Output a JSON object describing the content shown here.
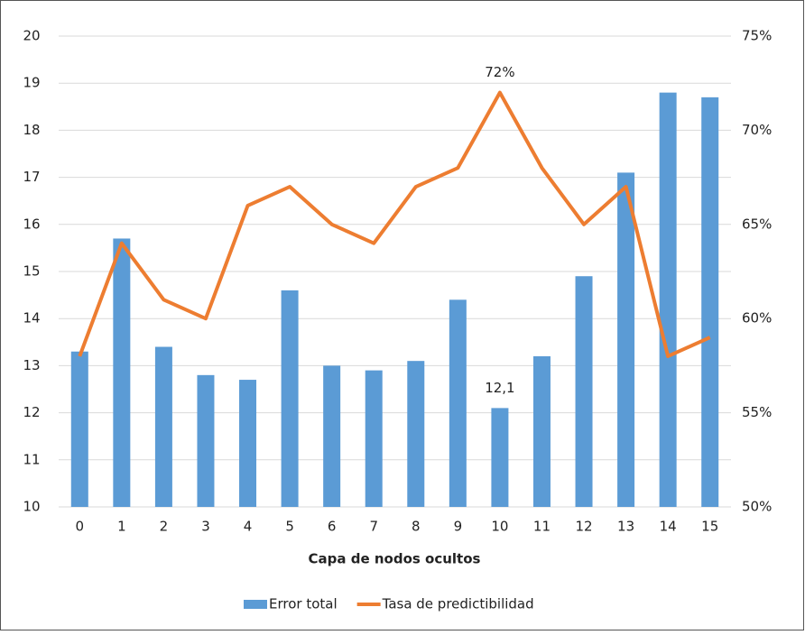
{
  "chart_data": {
    "type": "bar-line",
    "x_label": "Capa de nodos ocultos",
    "categories": [
      "0",
      "1",
      "2",
      "3",
      "4",
      "5",
      "6",
      "7",
      "8",
      "9",
      "10",
      "11",
      "12",
      "13",
      "14",
      "15"
    ],
    "series": [
      {
        "name": "Error total",
        "type": "bar",
        "color": "#5b9bd5",
        "values": [
          13.3,
          15.7,
          13.4,
          12.8,
          12.7,
          14.6,
          13.0,
          12.9,
          13.1,
          14.4,
          12.1,
          13.2,
          14.9,
          17.1,
          18.8,
          18.7
        ],
        "value_labels": [
          null,
          null,
          null,
          null,
          null,
          null,
          null,
          null,
          null,
          null,
          "12,1",
          null,
          null,
          null,
          null,
          null
        ]
      },
      {
        "name": "Tasa de predictibilidad",
        "type": "line",
        "axis": "y2",
        "color": "#ed7d31",
        "values": [
          58,
          64,
          61,
          60,
          66,
          67,
          65,
          64,
          67,
          68,
          72,
          68,
          65,
          67,
          58,
          59
        ],
        "value_labels": [
          null,
          null,
          null,
          null,
          null,
          null,
          null,
          null,
          null,
          null,
          "72%",
          null,
          null,
          null,
          null,
          null
        ]
      }
    ],
    "ylim": [
      10,
      20
    ],
    "yticks": [
      10,
      11,
      12,
      13,
      14,
      15,
      16,
      17,
      18,
      19,
      20
    ],
    "y2lim": [
      50,
      75
    ],
    "y2ticks": [
      {
        "value": 50,
        "label": "50%"
      },
      {
        "value": 55,
        "label": "55%"
      },
      {
        "value": 60,
        "label": "60%"
      },
      {
        "value": 65,
        "label": "65%"
      },
      {
        "value": 70,
        "label": "70%"
      },
      {
        "value": 75,
        "label": "75%"
      }
    ],
    "grid": true,
    "legend": "bottom"
  }
}
